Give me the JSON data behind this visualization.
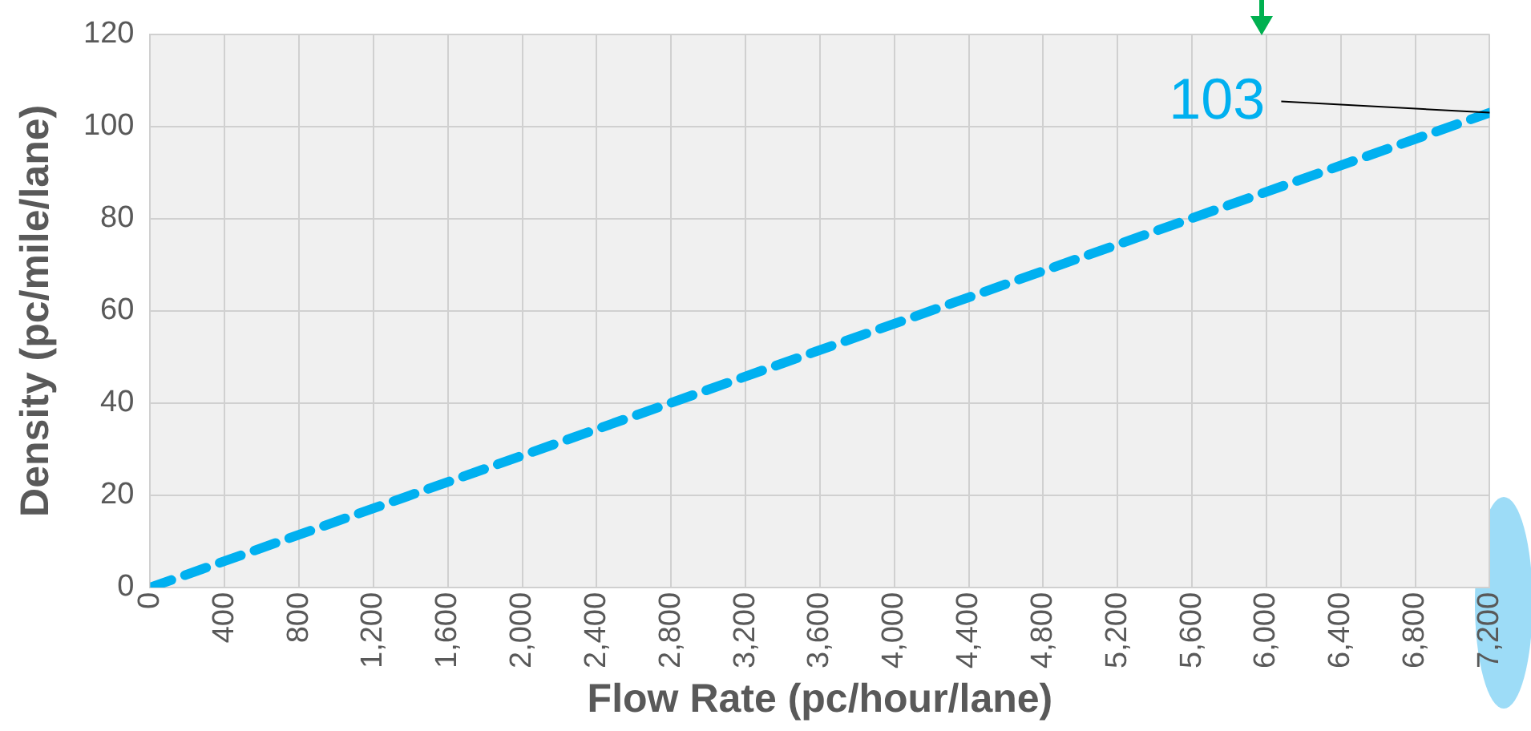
{
  "chart_data": {
    "type": "line",
    "xlabel": "Flow Rate (pc/hour/lane)",
    "ylabel": "Density (pc/mile/lane)",
    "x": [
      0,
      7200
    ],
    "series": [
      {
        "color": "#00b0f0",
        "values": [
          0,
          103
        ]
      }
    ],
    "annotations": [
      {
        "text": "103",
        "x": 7200,
        "y": 103
      }
    ],
    "xlim": [
      0,
      7200
    ],
    "ylim": [
      0,
      120
    ],
    "xticks": [
      0,
      400,
      800,
      {
        "value": 1200,
        "label": "1,200"
      },
      {
        "value": 1600,
        "label": "1,600"
      },
      {
        "value": 2000,
        "label": "2,000"
      },
      {
        "value": 2400,
        "label": "2,400"
      },
      {
        "value": 2800,
        "label": "2,800"
      },
      {
        "value": 3200,
        "label": "3,200"
      },
      {
        "value": 3600,
        "label": "3,600"
      },
      {
        "value": 4000,
        "label": "4,000"
      },
      {
        "value": 4400,
        "label": "4,400"
      },
      {
        "value": 4800,
        "label": "4,800"
      },
      {
        "value": 5200,
        "label": "5,200"
      },
      {
        "value": 5600,
        "label": "5,600"
      },
      {
        "value": 6000,
        "label": "6,000"
      },
      {
        "value": 6400,
        "label": "6,400"
      },
      {
        "value": 6800,
        "label": "6,800"
      },
      {
        "value": 7200,
        "label": "7,200"
      }
    ],
    "yticks": [
      0,
      20,
      40,
      60,
      80,
      100,
      120
    ],
    "grid": true,
    "legend": false,
    "marker": "none",
    "line_style": "dashed"
  }
}
